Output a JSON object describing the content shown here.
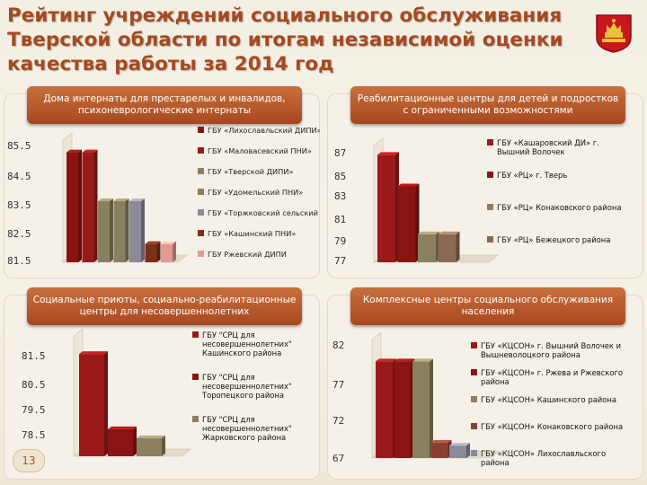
{
  "title": "Рейтинг учреждений социального обслуживания Тверской области по итогам независимой оценки качества работы за 2014 год",
  "page_number": "13",
  "chart_data": [
    {
      "type": "bar",
      "title": "Дома интернаты для престарелых и инвалидов, психоневрологические интернаты",
      "ylim": [
        81.5,
        85.5
      ],
      "yticks": [
        "85.5",
        "84.5",
        "83.5",
        "82.5",
        "81.5"
      ],
      "series": [
        {
          "name": "ГБУ «Лихославльский ДИПИ»",
          "value": 85.1,
          "color": "#8a1414"
        },
        {
          "name": "ГБУ «Маловасевский ПНИ»",
          "value": 85.1,
          "color": "#9a1a1a"
        },
        {
          "name": "ГБУ «Тверской ДИПИ»",
          "value": 83.5,
          "color": "#8a8060"
        },
        {
          "name": "ГБУ «Удомельский ПНИ»",
          "value": 83.5,
          "color": "#8a8060"
        },
        {
          "name": "ГБУ «Торжковский сельский ПНИ»",
          "value": 83.5,
          "color": "#8a8a98"
        },
        {
          "name": "ГБУ «Кашинский ПНИ»",
          "value": 82.1,
          "color": "#7a3018"
        },
        {
          "name": "ГБУ Ржевский ДИПИ",
          "value": 82.1,
          "color": "#e59a90"
        }
      ],
      "legend": "right"
    },
    {
      "type": "bar",
      "title": "Реабилитационные центры для детей и подростков с ограниченными возможностями",
      "ylim": [
        77,
        87
      ],
      "yticks": [
        "87",
        "85",
        "83",
        "81",
        "79",
        "77"
      ],
      "series": [
        {
          "name": "ГБУ «Кашаровский ДИ» г. Вышний Волочек",
          "value": 86.2,
          "color": "#9a1a1a"
        },
        {
          "name": "ГБУ «РЦ» г. Тверь",
          "value": 83.5,
          "color": "#8a1414"
        },
        {
          "name": "ГБУ «РЦ» Конаковского района",
          "value": 79.4,
          "color": "#8a8060"
        },
        {
          "name": "ГБУ «РЦ» Бежецкого района",
          "value": 79.4,
          "color": "#8a6a52"
        }
      ],
      "legend": "right"
    },
    {
      "type": "bar",
      "title": "Социальные приюты, социально-реабилитационные центры для несовершеннолетних",
      "ylim": [
        78,
        82
      ],
      "yticks": [
        "81.5",
        "80.5",
        "79.5",
        "78.5"
      ],
      "series": [
        {
          "name": "ГБУ \"СРЦ для несовершеннолетних\" Кашинского района",
          "value": 81.4,
          "color": "#9a1a1a"
        },
        {
          "name": "ГБУ \"СРЦ для несовершеннолетних\" Торопецкого района",
          "value": 78.9,
          "color": "#8a1414"
        },
        {
          "name": "ГБУ \"СРЦ для несовершеннолетних\" Жарковского района",
          "value": 78.6,
          "color": "#8a8060"
        }
      ],
      "legend": "right"
    },
    {
      "type": "bar",
      "title": "Комплексные центры социального обслуживания населения",
      "ylim": [
        62,
        82
      ],
      "yticks": [
        "82",
        "77",
        "72",
        "67"
      ],
      "series": [
        {
          "name": "ГБУ «КЦСОН» г. Вышний Волочек и Вышневолоцкого района",
          "value": 78.3,
          "color": "#9a1a1a"
        },
        {
          "name": "ГБУ «КЦСОН» г. Ржева и Ржевского района",
          "value": 78.3,
          "color": "#8a1414"
        },
        {
          "name": "ГБУ «КЦСОН» Кашинского района",
          "value": 78.3,
          "color": "#8a8060"
        },
        {
          "name": "ГБУ «КЦСОН» Конаковского района",
          "value": 64.6,
          "color": "#8a4030"
        },
        {
          "name": "ГБУ «КЦСОН» Лихославльского района",
          "value": 64.1,
          "color": "#8a8a98"
        }
      ],
      "legend": "right"
    }
  ]
}
